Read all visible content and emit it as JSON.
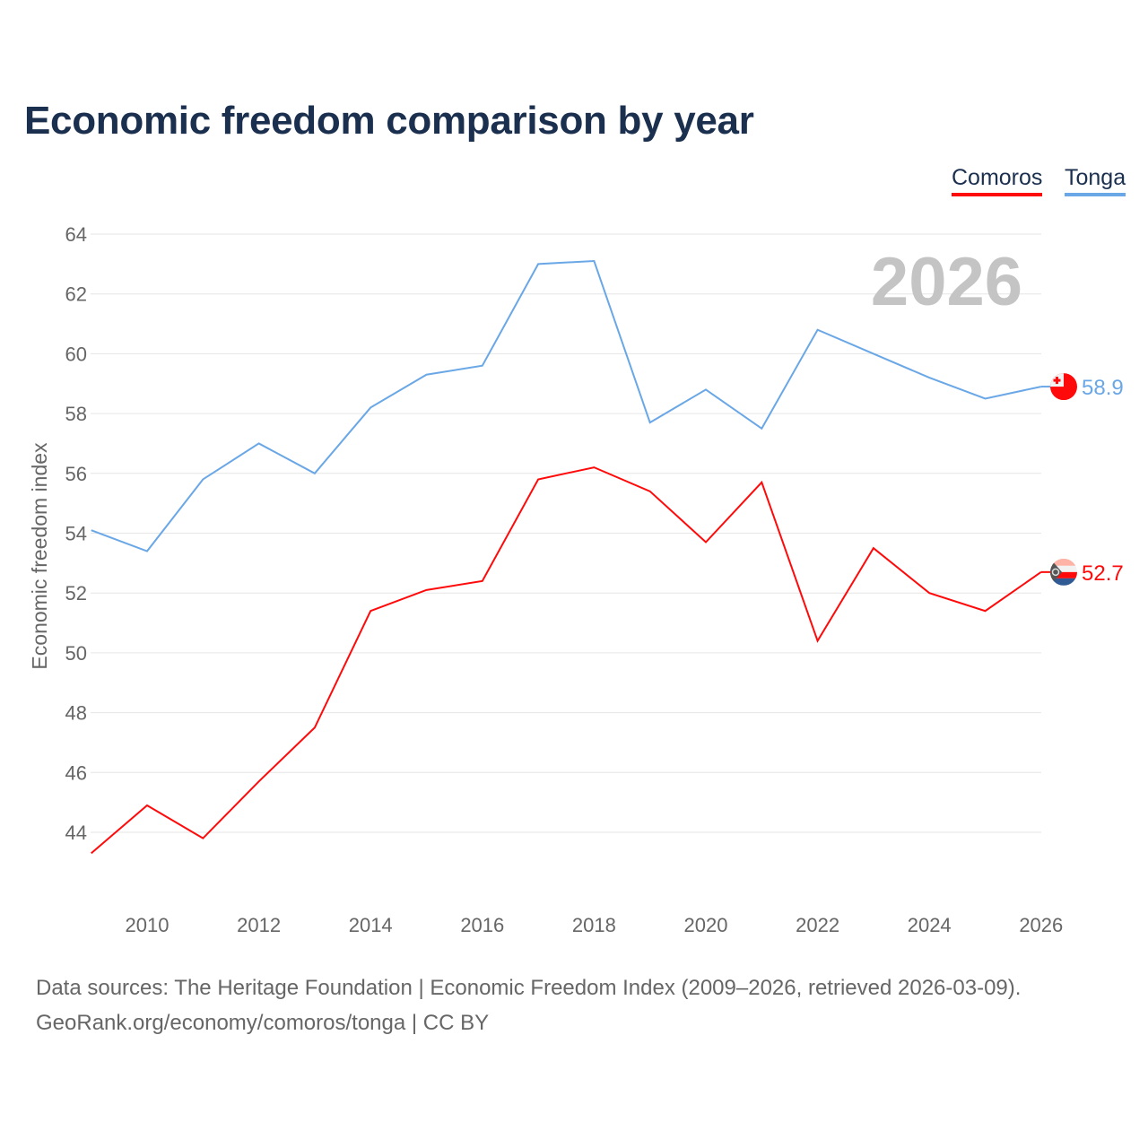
{
  "chart_data": {
    "type": "line",
    "title": "Economic freedom comparison by year",
    "xlabel": "",
    "ylabel": "Economic freedom index",
    "xlim": [
      2009,
      2026
    ],
    "ylim": [
      43,
      64
    ],
    "xticks": [
      2010,
      2012,
      2014,
      2016,
      2018,
      2020,
      2022,
      2024,
      2026
    ],
    "yticks": [
      44,
      46,
      48,
      50,
      52,
      54,
      56,
      58,
      60,
      62,
      64
    ],
    "grid": true,
    "legend_position": "top-right",
    "watermark_year": "2026",
    "x": [
      2009,
      2010,
      2011,
      2012,
      2013,
      2014,
      2015,
      2016,
      2017,
      2018,
      2019,
      2020,
      2021,
      2022,
      2023,
      2024,
      2025,
      2026
    ],
    "series": [
      {
        "name": "Comoros",
        "color": "#ff0a0a",
        "end_label": "52.7",
        "values": [
          43.3,
          44.9,
          43.8,
          45.7,
          47.5,
          51.4,
          52.1,
          52.4,
          55.8,
          56.2,
          55.4,
          53.7,
          55.7,
          50.4,
          53.5,
          52.0,
          51.4,
          52.7
        ]
      },
      {
        "name": "Tonga",
        "color": "#6aa7e6",
        "end_label": "58.9",
        "values": [
          54.1,
          53.4,
          55.8,
          57.0,
          56.0,
          58.2,
          59.3,
          59.6,
          63.0,
          63.1,
          57.7,
          58.8,
          57.5,
          60.8,
          60.0,
          59.2,
          58.5,
          58.9
        ]
      }
    ]
  },
  "footer": {
    "line1": "Data sources: The Heritage Foundation | Economic Freedom Index (2009–2026, retrieved 2026-03-09).",
    "line2": "GeoRank.org/economy/comoros/tonga | CC BY"
  }
}
